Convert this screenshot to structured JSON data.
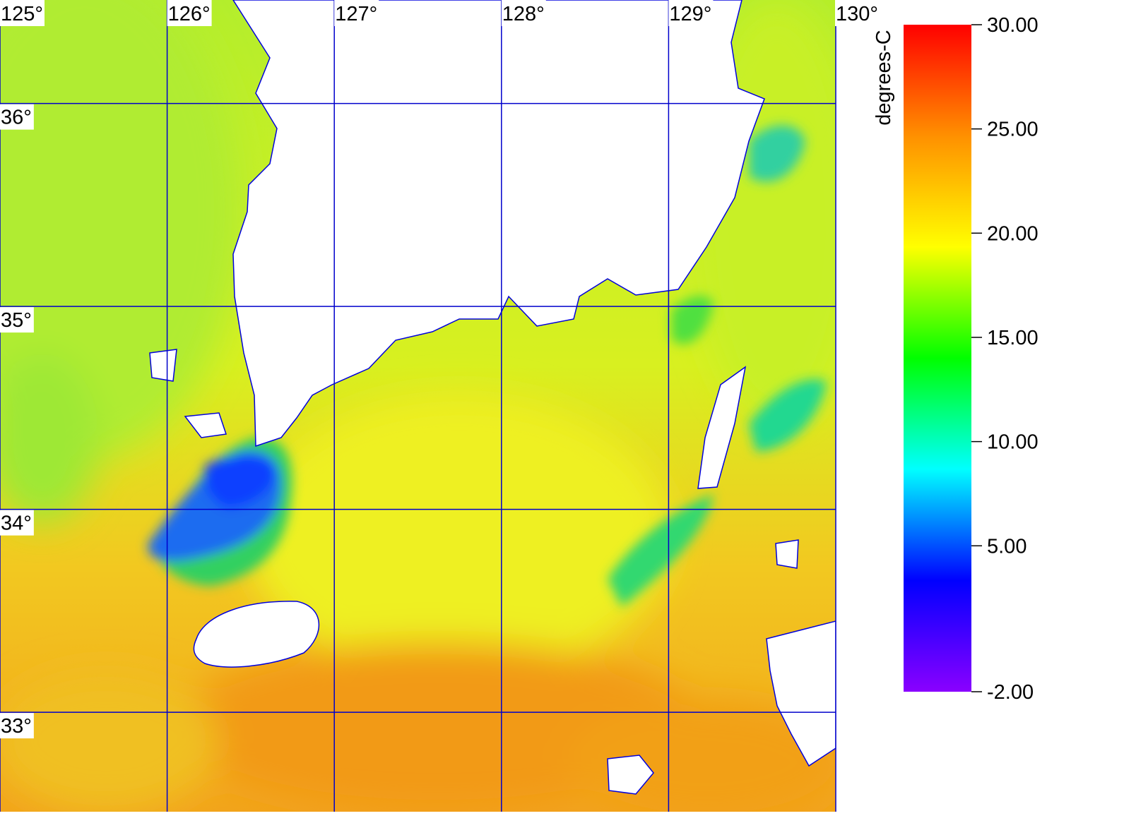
{
  "map": {
    "lon_range": [
      125,
      130
    ],
    "lat_range": [
      36.51,
      32.51
    ],
    "lon_ticks": [
      {
        "value": 125,
        "label": "125°"
      },
      {
        "value": 126,
        "label": "126°"
      },
      {
        "value": 127,
        "label": "127°"
      },
      {
        "value": 128,
        "label": "128°"
      },
      {
        "value": 129,
        "label": "129°"
      },
      {
        "value": 130,
        "label": "130°"
      }
    ],
    "lat_ticks": [
      {
        "value": 36,
        "label": "36°"
      },
      {
        "value": 35,
        "label": "35°"
      },
      {
        "value": 34,
        "label": "34°"
      },
      {
        "value": 33,
        "label": "33°"
      }
    ],
    "grid_color": "#0000cc",
    "colorbar": {
      "label": "degrees-C",
      "range": [
        -2,
        30
      ],
      "colormap": [
        "#8a00ff",
        "#0000ff",
        "#00ffff",
        "#00ff00",
        "#ffff00",
        "#ff9000",
        "#ff0000"
      ],
      "ticks": [
        {
          "value": 30,
          "label": "30.00"
        },
        {
          "value": 25,
          "label": "25.00"
        },
        {
          "value": 20,
          "label": "20.00"
        },
        {
          "value": 15,
          "label": "15.00"
        },
        {
          "value": 10,
          "label": "10.00"
        },
        {
          "value": 5,
          "label": "5.00"
        },
        {
          "value": -2,
          "label": "-2.00"
        }
      ]
    }
  }
}
